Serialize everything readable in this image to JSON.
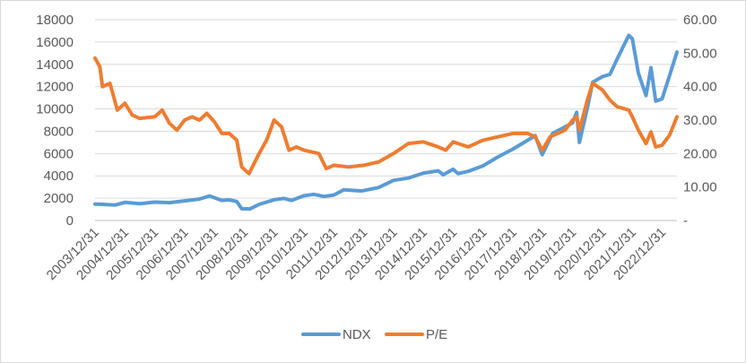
{
  "chart_data": {
    "type": "line",
    "title": "",
    "xlabel": "",
    "ylabel": "",
    "y2label": "",
    "grid": "horizontal",
    "legend_position": "bottom",
    "x_ticks": [
      "2003/12/31",
      "2004/12/31",
      "2005/12/31",
      "2006/12/31",
      "2007/12/31",
      "2008/12/31",
      "2009/12/31",
      "2010/12/31",
      "2011/12/31",
      "2012/12/31",
      "2013/12/31",
      "2014/12/31",
      "2015/12/31",
      "2016/12/31",
      "2017/12/31",
      "2018/12/31",
      "2019/12/31",
      "2020/12/31",
      "2021/12/31",
      "2022/12/31"
    ],
    "x_range": [
      "2003/12/31",
      "2023/06/30"
    ],
    "y_left": {
      "min": 0,
      "max": 18000,
      "ticks": [
        "0",
        "2000",
        "4000",
        "6000",
        "8000",
        "10000",
        "12000",
        "14000",
        "16000",
        "18000"
      ]
    },
    "y_right": {
      "min": 0,
      "max": 60,
      "ticks": [
        "-",
        "10.00",
        "20.00",
        "30.00",
        "40.00",
        "50.00",
        "60.00"
      ]
    },
    "series": [
      {
        "name": "NDX",
        "axis": "left",
        "color": "#5b9bd5",
        "points": [
          [
            "2003/12/31",
            1470
          ],
          [
            "2004/03/31",
            1450
          ],
          [
            "2004/08/31",
            1380
          ],
          [
            "2004/12/31",
            1620
          ],
          [
            "2005/06/30",
            1500
          ],
          [
            "2005/12/31",
            1650
          ],
          [
            "2006/06/30",
            1600
          ],
          [
            "2006/12/31",
            1760
          ],
          [
            "2007/06/30",
            1920
          ],
          [
            "2007/10/31",
            2200
          ],
          [
            "2008/03/31",
            1800
          ],
          [
            "2008/06/30",
            1850
          ],
          [
            "2008/09/30",
            1700
          ],
          [
            "2008/11/30",
            1050
          ],
          [
            "2009/03/09",
            1040
          ],
          [
            "2009/06/30",
            1450
          ],
          [
            "2009/12/31",
            1860
          ],
          [
            "2010/04/30",
            1980
          ],
          [
            "2010/07/31",
            1800
          ],
          [
            "2010/12/31",
            2220
          ],
          [
            "2011/04/30",
            2350
          ],
          [
            "2011/08/31",
            2150
          ],
          [
            "2011/12/31",
            2280
          ],
          [
            "2012/04/30",
            2750
          ],
          [
            "2012/11/30",
            2650
          ],
          [
            "2012/12/31",
            2680
          ],
          [
            "2013/06/30",
            2950
          ],
          [
            "2013/12/31",
            3600
          ],
          [
            "2014/06/30",
            3800
          ],
          [
            "2014/12/31",
            4250
          ],
          [
            "2015/06/30",
            4450
          ],
          [
            "2015/08/31",
            4100
          ],
          [
            "2015/12/31",
            4600
          ],
          [
            "2016/02/29",
            4200
          ],
          [
            "2016/06/30",
            4400
          ],
          [
            "2016/12/31",
            4900
          ],
          [
            "2017/06/30",
            5700
          ],
          [
            "2017/12/31",
            6400
          ],
          [
            "2018/09/30",
            7600
          ],
          [
            "2018/12/24",
            5900
          ],
          [
            "2019/04/30",
            7800
          ],
          [
            "2019/12/31",
            8750
          ],
          [
            "2020/02/19",
            9700
          ],
          [
            "2020/03/23",
            7000
          ],
          [
            "2020/06/30",
            10100
          ],
          [
            "2020/09/02",
            12400
          ],
          [
            "2020/12/31",
            12900
          ],
          [
            "2021/03/31",
            13100
          ],
          [
            "2021/06/30",
            14500
          ],
          [
            "2021/11/19",
            16600
          ],
          [
            "2021/12/31",
            16300
          ],
          [
            "2022/03/14",
            13200
          ],
          [
            "2022/06/16",
            11200
          ],
          [
            "2022/08/16",
            13700
          ],
          [
            "2022/10/13",
            10700
          ],
          [
            "2022/12/31",
            10900
          ],
          [
            "2023/03/31",
            13000
          ],
          [
            "2023/06/30",
            15100
          ]
        ]
      },
      {
        "name": "P/E",
        "axis": "right",
        "color": "#ed7d31",
        "points": [
          [
            "2003/12/31",
            48.5
          ],
          [
            "2004/02/28",
            46
          ],
          [
            "2004/03/31",
            40
          ],
          [
            "2004/06/30",
            41
          ],
          [
            "2004/09/30",
            33
          ],
          [
            "2004/12/31",
            35
          ],
          [
            "2005/03/31",
            31.5
          ],
          [
            "2005/06/30",
            30.5
          ],
          [
            "2005/12/31",
            31
          ],
          [
            "2006/03/31",
            33
          ],
          [
            "2006/06/30",
            29
          ],
          [
            "2006/09/30",
            27
          ],
          [
            "2006/12/31",
            30
          ],
          [
            "2007/03/31",
            31
          ],
          [
            "2007/06/30",
            30
          ],
          [
            "2007/09/30",
            32
          ],
          [
            "2007/12/31",
            29.5
          ],
          [
            "2008/03/31",
            26
          ],
          [
            "2008/06/30",
            26
          ],
          [
            "2008/09/30",
            24
          ],
          [
            "2008/11/30",
            16
          ],
          [
            "2009/02/28",
            14
          ],
          [
            "2009/06/30",
            20
          ],
          [
            "2009/09/30",
            24
          ],
          [
            "2009/12/31",
            30
          ],
          [
            "2010/03/31",
            28
          ],
          [
            "2010/06/30",
            21
          ],
          [
            "2010/09/30",
            22
          ],
          [
            "2010/12/31",
            21
          ],
          [
            "2011/06/30",
            20
          ],
          [
            "2011/09/30",
            15.5
          ],
          [
            "2011/12/31",
            16.5
          ],
          [
            "2012/06/30",
            16
          ],
          [
            "2012/12/31",
            16.5
          ],
          [
            "2013/06/30",
            17.5
          ],
          [
            "2013/12/31",
            20
          ],
          [
            "2014/06/30",
            23
          ],
          [
            "2014/12/31",
            23.5
          ],
          [
            "2015/06/30",
            22
          ],
          [
            "2015/09/30",
            21
          ],
          [
            "2015/12/31",
            23.5
          ],
          [
            "2016/06/30",
            22
          ],
          [
            "2016/12/31",
            24
          ],
          [
            "2017/06/30",
            25
          ],
          [
            "2017/12/31",
            26
          ],
          [
            "2018/06/30",
            26
          ],
          [
            "2018/09/30",
            25
          ],
          [
            "2018/12/24",
            21
          ],
          [
            "2019/03/31",
            25
          ],
          [
            "2019/06/30",
            26
          ],
          [
            "2019/09/30",
            27
          ],
          [
            "2019/12/31",
            30
          ],
          [
            "2020/02/19",
            31
          ],
          [
            "2020/03/23",
            27
          ],
          [
            "2020/06/30",
            36
          ],
          [
            "2020/09/02",
            41
          ],
          [
            "2020/12/31",
            39
          ],
          [
            "2021/03/31",
            36
          ],
          [
            "2021/06/30",
            34
          ],
          [
            "2021/11/19",
            33
          ],
          [
            "2021/12/31",
            31
          ],
          [
            "2022/03/14",
            27
          ],
          [
            "2022/06/16",
            23
          ],
          [
            "2022/08/16",
            26.5
          ],
          [
            "2022/10/13",
            22
          ],
          [
            "2022/12/31",
            22.5
          ],
          [
            "2023/03/31",
            25.5
          ],
          [
            "2023/06/30",
            31
          ]
        ]
      }
    ]
  }
}
